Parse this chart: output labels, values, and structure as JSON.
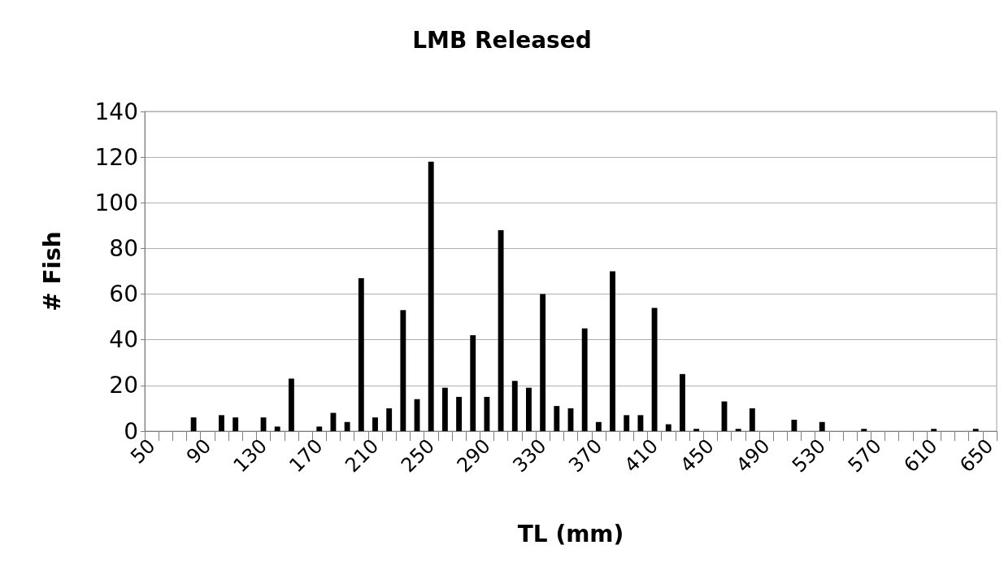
{
  "chart_data": {
    "type": "bar",
    "title": "LMB Released",
    "xlabel": "TL (mm)",
    "ylabel": "# Fish",
    "color": "#000000",
    "categories": [
      "50",
      null,
      null,
      null,
      "90",
      null,
      null,
      null,
      "130",
      null,
      null,
      null,
      "170",
      null,
      null,
      null,
      "210",
      null,
      null,
      null,
      "250",
      null,
      null,
      null,
      "290",
      null,
      null,
      null,
      "330",
      null,
      null,
      null,
      "370",
      null,
      null,
      null,
      "410",
      null,
      null,
      null,
      "450",
      null,
      null,
      null,
      "490",
      null,
      null,
      null,
      "530",
      null,
      null,
      null,
      "570",
      null,
      null,
      null,
      "610",
      null,
      null,
      null,
      "650"
    ],
    "values": [
      0,
      0,
      0,
      6,
      0,
      7,
      6,
      0,
      6,
      2,
      23,
      0,
      2,
      8,
      4,
      67,
      6,
      10,
      53,
      14,
      118,
      19,
      15,
      42,
      15,
      88,
      22,
      19,
      60,
      11,
      10,
      45,
      4,
      70,
      7,
      7,
      54,
      3,
      25,
      1,
      0,
      13,
      1,
      10,
      0,
      0,
      5,
      0,
      4,
      0,
      0,
      1,
      0,
      0,
      0,
      0,
      1,
      0,
      0,
      1,
      0
    ],
    "ylim": [
      0,
      140
    ],
    "yticks": [
      0,
      20,
      40,
      60,
      80,
      100,
      120,
      140
    ],
    "grid": "y"
  }
}
